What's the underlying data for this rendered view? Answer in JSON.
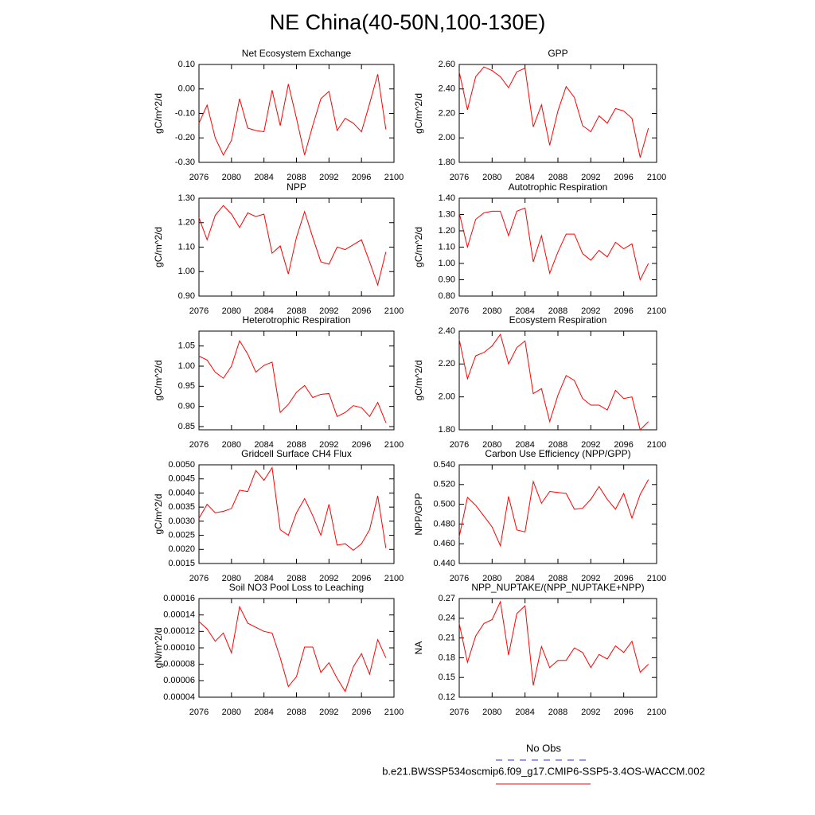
{
  "title": "NE China(40-50N,100-130E)",
  "legend": [
    {
      "label": "No Obs",
      "color": "#3333cc",
      "dashed": true
    },
    {
      "label": "b.e21.BWSSP534oscmip6.f09_g17.CMIP6-SSP5-3.4OS-WACCM.002",
      "color": "#ff0000",
      "dashed": false
    }
  ],
  "chart_data": [
    {
      "type": "line",
      "title": "Net Ecosystem Exchange",
      "ylabel": "gC/m^2/d",
      "x": [
        2076,
        2077,
        2078,
        2079,
        2080,
        2081,
        2082,
        2083,
        2084,
        2085,
        2086,
        2087,
        2088,
        2089,
        2090,
        2091,
        2092,
        2093,
        2094,
        2095,
        2096,
        2097,
        2098,
        2099
      ],
      "series": [
        {
          "color": "#ff0000",
          "values": [
            -0.14,
            -0.066,
            -0.2,
            -0.27,
            -0.21,
            -0.04,
            -0.16,
            -0.17,
            -0.175,
            -0.005,
            -0.15,
            0.02,
            -0.12,
            -0.27,
            -0.15,
            -0.04,
            -0.01,
            -0.17,
            -0.12,
            -0.14,
            -0.175,
            -0.06,
            0.06,
            -0.165
          ]
        }
      ],
      "xlim": [
        2076,
        2100
      ],
      "xticks": [
        2076,
        2080,
        2084,
        2088,
        2092,
        2096,
        2100
      ],
      "ylim": [
        -0.3,
        0.1
      ],
      "yticks": [
        {
          "value": -0.3,
          "label": "-0.30"
        },
        {
          "value": -0.2,
          "label": "-0.20"
        },
        {
          "value": -0.1,
          "label": "-0.10"
        },
        {
          "value": 0,
          "label": "0.00"
        },
        {
          "value": 0.1,
          "label": "0.10"
        }
      ]
    },
    {
      "type": "line",
      "title": "GPP",
      "ylabel": "gC/m^2/d",
      "x": [
        2076,
        2077,
        2078,
        2079,
        2080,
        2081,
        2082,
        2083,
        2084,
        2085,
        2086,
        2087,
        2088,
        2089,
        2090,
        2091,
        2092,
        2093,
        2094,
        2095,
        2096,
        2097,
        2098,
        2099
      ],
      "series": [
        {
          "color": "#ff0000",
          "values": [
            2.54,
            2.23,
            2.5,
            2.58,
            2.55,
            2.5,
            2.41,
            2.54,
            2.57,
            2.09,
            2.27,
            1.94,
            2.22,
            2.42,
            2.33,
            2.1,
            2.05,
            2.18,
            2.12,
            2.24,
            2.22,
            2.16,
            1.84,
            2.08
          ]
        }
      ],
      "xlim": [
        2076,
        2100
      ],
      "xticks": [
        2076,
        2080,
        2084,
        2088,
        2092,
        2096,
        2100
      ],
      "ylim": [
        1.8,
        2.6
      ],
      "yticks": [
        {
          "value": 1.8,
          "label": "1.80"
        },
        {
          "value": 2,
          "label": "2.00"
        },
        {
          "value": 2.2,
          "label": "2.20"
        },
        {
          "value": 2.4,
          "label": "2.40"
        },
        {
          "value": 2.6,
          "label": "2.60"
        }
      ]
    },
    {
      "type": "line",
      "title": "NPP",
      "ylabel": "gC/m^2/d",
      "x": [
        2076,
        2077,
        2078,
        2079,
        2080,
        2081,
        2082,
        2083,
        2084,
        2085,
        2086,
        2087,
        2088,
        2089,
        2090,
        2091,
        2092,
        2093,
        2094,
        2095,
        2096,
        2097,
        2098,
        2099
      ],
      "series": [
        {
          "color": "#ff0000",
          "values": [
            1.22,
            1.13,
            1.23,
            1.27,
            1.235,
            1.18,
            1.24,
            1.225,
            1.235,
            1.075,
            1.105,
            0.99,
            1.14,
            1.245,
            1.14,
            1.04,
            1.03,
            1.1,
            1.09,
            1.11,
            1.13,
            1.04,
            0.945,
            1.08
          ]
        }
      ],
      "xlim": [
        2076,
        2100
      ],
      "xticks": [
        2076,
        2080,
        2084,
        2088,
        2092,
        2096,
        2100
      ],
      "ylim": [
        0.9,
        1.3
      ],
      "yticks": [
        {
          "value": 0.9,
          "label": "0.90"
        },
        {
          "value": 1,
          "label": "1.00"
        },
        {
          "value": 1.1,
          "label": "1.10"
        },
        {
          "value": 1.2,
          "label": "1.20"
        },
        {
          "value": 1.3,
          "label": "1.30"
        }
      ]
    },
    {
      "type": "line",
      "title": "Autotrophic Respiration",
      "ylabel": "gC/m^2/d",
      "x": [
        2076,
        2077,
        2078,
        2079,
        2080,
        2081,
        2082,
        2083,
        2084,
        2085,
        2086,
        2087,
        2088,
        2089,
        2090,
        2091,
        2092,
        2093,
        2094,
        2095,
        2096,
        2097,
        2098,
        2099
      ],
      "series": [
        {
          "color": "#ff0000",
          "values": [
            1.31,
            1.1,
            1.27,
            1.31,
            1.32,
            1.32,
            1.17,
            1.32,
            1.34,
            1.01,
            1.17,
            0.94,
            1.07,
            1.18,
            1.18,
            1.06,
            1.02,
            1.08,
            1.04,
            1.13,
            1.09,
            1.12,
            0.9,
            1.0
          ]
        }
      ],
      "xlim": [
        2076,
        2100
      ],
      "xticks": [
        2076,
        2080,
        2084,
        2088,
        2092,
        2096,
        2100
      ],
      "ylim": [
        0.8,
        1.4
      ],
      "yticks": [
        {
          "value": 0.8,
          "label": "0.80"
        },
        {
          "value": 0.9,
          "label": "0.90"
        },
        {
          "value": 1,
          "label": "1.00"
        },
        {
          "value": 1.1,
          "label": "1.10"
        },
        {
          "value": 1.2,
          "label": "1.20"
        },
        {
          "value": 1.3,
          "label": "1.30"
        },
        {
          "value": 1.4,
          "label": "1.40"
        }
      ]
    },
    {
      "type": "line",
      "title": "Heterotrophic Respiration",
      "ylabel": "gC/m^2/d",
      "x": [
        2076,
        2077,
        2078,
        2079,
        2080,
        2081,
        2082,
        2083,
        2084,
        2085,
        2086,
        2087,
        2088,
        2089,
        2090,
        2091,
        2092,
        2093,
        2094,
        2095,
        2096,
        2097,
        2098,
        2099
      ],
      "series": [
        {
          "color": "#ff0000",
          "values": [
            1.025,
            1.015,
            0.985,
            0.97,
            1.0,
            1.063,
            1.03,
            0.985,
            1.002,
            1.01,
            0.885,
            0.905,
            0.935,
            0.952,
            0.922,
            0.93,
            0.932,
            0.875,
            0.885,
            0.902,
            0.897,
            0.875,
            0.91,
            0.86
          ]
        }
      ],
      "xlim": [
        2076,
        2100
      ],
      "xticks": [
        2076,
        2080,
        2084,
        2088,
        2092,
        2096,
        2100
      ],
      "ylim": [
        0.842,
        1.087
      ],
      "yticks": [
        0.85,
        {
          "value": 0.9,
          "label": "0.90"
        },
        0.95,
        {
          "value": 1,
          "label": "1.00"
        },
        1.05
      ]
    },
    {
      "type": "line",
      "title": "Ecosystem Respiration",
      "ylabel": "gC/m^2/d",
      "x": [
        2076,
        2077,
        2078,
        2079,
        2080,
        2081,
        2082,
        2083,
        2084,
        2085,
        2086,
        2087,
        2088,
        2089,
        2090,
        2091,
        2092,
        2093,
        2094,
        2095,
        2096,
        2097,
        2098,
        2099
      ],
      "series": [
        {
          "color": "#ff0000",
          "values": [
            2.35,
            2.11,
            2.25,
            2.27,
            2.31,
            2.38,
            2.2,
            2.3,
            2.34,
            2.02,
            2.05,
            1.85,
            2.01,
            2.13,
            2.1,
            1.99,
            1.95,
            1.95,
            1.92,
            2.04,
            1.99,
            2.0,
            1.8,
            1.85
          ]
        }
      ],
      "xlim": [
        2076,
        2100
      ],
      "xticks": [
        2076,
        2080,
        2084,
        2088,
        2092,
        2096,
        2100
      ],
      "ylim": [
        1.8,
        2.4
      ],
      "yticks": [
        {
          "value": 1.8,
          "label": "1.80"
        },
        {
          "value": 2,
          "label": "2.00"
        },
        {
          "value": 2.2,
          "label": "2.20"
        },
        {
          "value": 2.4,
          "label": "2.40"
        }
      ]
    },
    {
      "type": "line",
      "title": "Gridcell Surface CH4 Flux",
      "ylabel": "gC/m^2/d",
      "x": [
        2076,
        2077,
        2078,
        2079,
        2080,
        2081,
        2082,
        2083,
        2084,
        2085,
        2086,
        2087,
        2088,
        2089,
        2090,
        2091,
        2092,
        2093,
        2094,
        2095,
        2096,
        2097,
        2098,
        2099
      ],
      "series": [
        {
          "color": "#ff0000",
          "values": [
            0.0031,
            0.0036,
            0.0033,
            0.00335,
            0.00345,
            0.0041,
            0.00405,
            0.0048,
            0.00445,
            0.0049,
            0.0027,
            0.0025,
            0.0033,
            0.0038,
            0.0032,
            0.0025,
            0.0036,
            0.00215,
            0.0022,
            0.00197,
            0.0022,
            0.0027,
            0.0039,
            0.00205
          ]
        }
      ],
      "xlim": [
        2076,
        2100
      ],
      "xticks": [
        2076,
        2080,
        2084,
        2088,
        2092,
        2096,
        2100
      ],
      "ylim": [
        0.0015,
        0.005
      ],
      "yticks": [
        0.0015,
        {
          "value": 0.002,
          "label": "0.0020"
        },
        0.0025,
        {
          "value": 0.003,
          "label": "0.0030"
        },
        0.0035,
        {
          "value": 0.004,
          "label": "0.0040"
        },
        0.0045,
        {
          "value": 0.005,
          "label": "0.0050"
        }
      ]
    },
    {
      "type": "line",
      "title": "Carbon Use Efficiency (NPP/GPP)",
      "ylabel": "NPP/GPP",
      "x": [
        2076,
        2077,
        2078,
        2079,
        2080,
        2081,
        2082,
        2083,
        2084,
        2085,
        2086,
        2087,
        2088,
        2089,
        2090,
        2091,
        2092,
        2093,
        2094,
        2095,
        2096,
        2097,
        2098,
        2099
      ],
      "series": [
        {
          "color": "#ff0000",
          "values": [
            0.467,
            0.507,
            0.499,
            0.488,
            0.477,
            0.458,
            0.508,
            0.474,
            0.472,
            0.523,
            0.501,
            0.513,
            0.512,
            0.511,
            0.495,
            0.496,
            0.505,
            0.518,
            0.505,
            0.495,
            0.511,
            0.486,
            0.51,
            0.525
          ]
        }
      ],
      "xlim": [
        2076,
        2100
      ],
      "xticks": [
        2076,
        2080,
        2084,
        2088,
        2092,
        2096,
        2100
      ],
      "ylim": [
        0.44,
        0.54
      ],
      "yticks": [
        {
          "value": 0.44,
          "label": "0.440"
        },
        {
          "value": 0.46,
          "label": "0.460"
        },
        {
          "value": 0.48,
          "label": "0.480"
        },
        {
          "value": 0.5,
          "label": "0.500"
        },
        {
          "value": 0.52,
          "label": "0.520"
        },
        {
          "value": 0.54,
          "label": "0.540"
        }
      ]
    },
    {
      "type": "line",
      "title": "Soil NO3 Pool Loss to Leaching",
      "ylabel": "gN/m^2/d",
      "x": [
        2076,
        2077,
        2078,
        2079,
        2080,
        2081,
        2082,
        2083,
        2084,
        2085,
        2086,
        2087,
        2088,
        2089,
        2090,
        2091,
        2092,
        2093,
        2094,
        2095,
        2096,
        2097,
        2098,
        2099
      ],
      "series": [
        {
          "color": "#ff0000",
          "values": [
            0.000132,
            0.000123,
            0.000108,
            0.000118,
            9.4e-05,
            0.00015,
            0.00013,
            0.000125,
            0.00012,
            0.000118,
            8.8e-05,
            5.3e-05,
            6.5e-05,
            0.000101,
            0.000101,
            7e-05,
            8.2e-05,
            6.3e-05,
            4.7e-05,
            7.7e-05,
            9.3e-05,
            6.8e-05,
            0.00011,
            8.8e-05
          ]
        }
      ],
      "xlim": [
        2076,
        2100
      ],
      "xticks": [
        2076,
        2080,
        2084,
        2088,
        2092,
        2096,
        2100
      ],
      "ylim": [
        4e-05,
        0.00016
      ],
      "yticks": [
        {
          "value": 4e-05,
          "label": "0.00004"
        },
        {
          "value": 6e-05,
          "label": "0.00006"
        },
        {
          "value": 8e-05,
          "label": "0.00008"
        },
        {
          "value": 0.0001,
          "label": "0.00010"
        },
        {
          "value": 0.00012,
          "label": "0.00012"
        },
        {
          "value": 0.00014,
          "label": "0.00014"
        },
        {
          "value": 0.00016,
          "label": "0.00016"
        }
      ]
    },
    {
      "type": "line",
      "title": "NPP_NUPTAKE/(NPP_NUPTAKE+NPP)",
      "ylabel": "NA",
      "x": [
        2076,
        2077,
        2078,
        2079,
        2080,
        2081,
        2082,
        2083,
        2084,
        2085,
        2086,
        2087,
        2088,
        2089,
        2090,
        2091,
        2092,
        2093,
        2094,
        2095,
        2096,
        2097,
        2098,
        2099
      ],
      "series": [
        {
          "color": "#ff0000",
          "values": [
            0.232,
            0.173,
            0.213,
            0.232,
            0.238,
            0.265,
            0.184,
            0.247,
            0.259,
            0.138,
            0.197,
            0.165,
            0.176,
            0.176,
            0.195,
            0.188,
            0.165,
            0.185,
            0.178,
            0.198,
            0.188,
            0.205,
            0.158,
            0.17
          ]
        }
      ],
      "xlim": [
        2076,
        2100
      ],
      "xticks": [
        2076,
        2080,
        2084,
        2088,
        2092,
        2096,
        2100
      ],
      "ylim": [
        0.12,
        0.27
      ],
      "yticks": [
        0.12,
        0.15,
        0.18,
        0.21,
        0.24,
        0.27
      ]
    }
  ]
}
